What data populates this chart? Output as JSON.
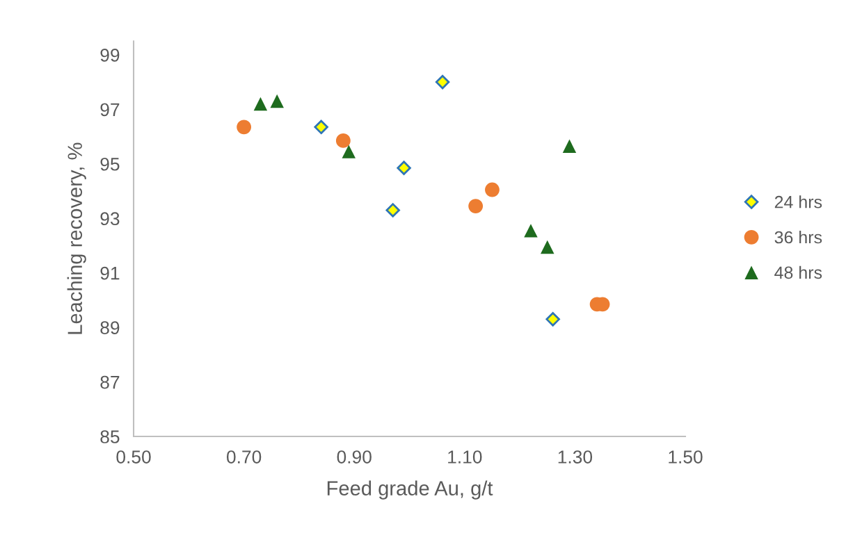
{
  "chart_data": {
    "type": "scatter",
    "xlabel": "Feed grade Au, g/t",
    "ylabel": "Leaching recovery, %",
    "xlim": [
      0.5,
      1.5
    ],
    "xticks": [
      {
        "value": 0.5,
        "label": "0.50"
      },
      {
        "value": 0.7,
        "label": "0.70"
      },
      {
        "value": 0.9,
        "label": "0.90"
      },
      {
        "value": 1.1,
        "label": "1.10"
      },
      {
        "value": 1.3,
        "label": "1.30"
      },
      {
        "value": 1.5,
        "label": "1.50"
      }
    ],
    "ylim": [
      85,
      99.5
    ],
    "yticks": [
      85,
      87,
      89,
      91,
      93,
      95,
      97,
      99
    ],
    "grid": false,
    "legend": "right",
    "series": [
      {
        "name": "24 hrs",
        "color": "#ffff00",
        "marker": "diamond",
        "x": [
          1.06,
          0.84,
          0.99,
          0.97,
          1.26
        ],
        "values": [
          98.0,
          96.35,
          94.85,
          93.3,
          89.3
        ]
      },
      {
        "name": "36 hrs",
        "color": "#ed7d31",
        "marker": "circle",
        "x": [
          0.7,
          0.88,
          1.12,
          1.15,
          1.34,
          1.35
        ],
        "values": [
          96.35,
          95.85,
          93.45,
          94.05,
          89.85,
          89.85
        ]
      },
      {
        "name": "48 hrs",
        "color": "#1e6b1e",
        "marker": "triangle",
        "x": [
          0.73,
          0.76,
          0.89,
          1.29,
          1.22,
          1.25
        ],
        "values": [
          97.2,
          97.3,
          95.45,
          95.65,
          92.55,
          91.95
        ]
      }
    ]
  }
}
